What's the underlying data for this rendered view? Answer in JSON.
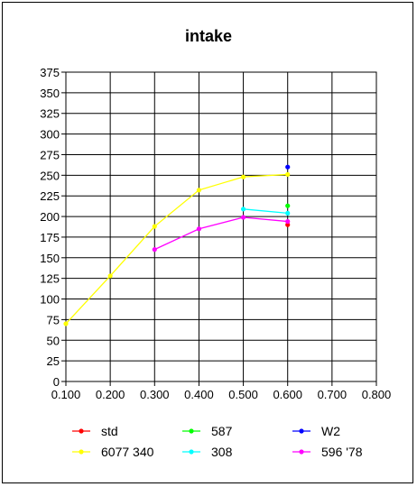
{
  "chart_data": {
    "type": "line",
    "title": "intake",
    "xlabel": "",
    "ylabel": "",
    "xlim": [
      0.1,
      0.8
    ],
    "ylim": [
      0,
      375
    ],
    "x_ticks": [
      "0.100",
      "0.200",
      "0.300",
      "0.400",
      "0.500",
      "0.600",
      "0.700",
      "0.800"
    ],
    "y_ticks": [
      "0",
      "25",
      "50",
      "75",
      "100",
      "125",
      "150",
      "175",
      "200",
      "225",
      "250",
      "275",
      "300",
      "325",
      "350",
      "375"
    ],
    "grid": true,
    "legend_position": "bottom",
    "series": [
      {
        "name": "std",
        "color": "#ff0000",
        "points": [
          [
            0.6,
            190
          ]
        ]
      },
      {
        "name": "587",
        "color": "#00ff00",
        "points": [
          [
            0.6,
            213
          ]
        ]
      },
      {
        "name": "W2",
        "color": "#0000ff",
        "points": [
          [
            0.6,
            260
          ]
        ]
      },
      {
        "name": "6077 340",
        "color": "#ffff00",
        "points": [
          [
            0.1,
            70
          ],
          [
            0.2,
            128
          ],
          [
            0.3,
            188
          ],
          [
            0.4,
            232
          ],
          [
            0.5,
            248
          ],
          [
            0.6,
            251
          ]
        ]
      },
      {
        "name": "308",
        "color": "#00ffff",
        "points": [
          [
            0.5,
            209
          ],
          [
            0.6,
            204
          ]
        ]
      },
      {
        "name": "596 '78",
        "color": "#ff00ff",
        "points": [
          [
            0.3,
            160
          ],
          [
            0.4,
            185
          ],
          [
            0.5,
            199
          ],
          [
            0.6,
            194
          ]
        ]
      }
    ]
  }
}
